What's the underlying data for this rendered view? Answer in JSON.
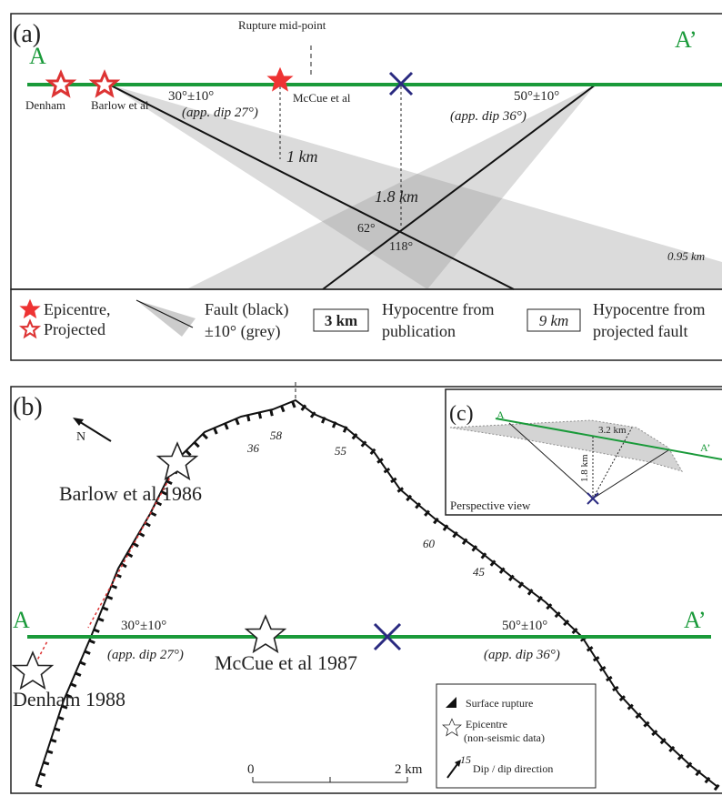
{
  "panel_a": {
    "label": "(a)",
    "start": "A",
    "end": "A’",
    "midpoint": "Rupture mid-point",
    "epicentres": [
      "Denham",
      "Barlow et al",
      "McCue et al"
    ],
    "fault_west": {
      "dip": "30°±10°",
      "apparent": "(app. dip 27°)"
    },
    "fault_east": {
      "dip": "50°±10°",
      "apparent": "(app. dip 36°)"
    },
    "depths": [
      "1 km",
      "1.8 km",
      "0.95 km"
    ],
    "angles": [
      "62°",
      "118°"
    ]
  },
  "legend_a": {
    "epicentre": "Epicentre,",
    "projected": "Projected",
    "fault": "Fault (black)",
    "range": "±10° (grey)",
    "pub_box": "3 km",
    "pub_1": "Hypocentre from",
    "pub_2": "publication",
    "proj_box": "9 km",
    "proj_1": "Hypocentre from",
    "proj_2": "projected fault"
  },
  "panel_b": {
    "label": "(b)",
    "north": "N",
    "start": "A",
    "end": "A’",
    "epicentres": [
      "Barlow et al 1986",
      "McCue et al 1987",
      "Denham 1988"
    ],
    "dips": [
      "36",
      "58",
      "55",
      "60",
      "45"
    ],
    "fault_west": {
      "dip": "30°±10°",
      "apparent": "(app. dip 27°)"
    },
    "fault_east": {
      "dip": "50°±10°",
      "apparent": "(app. dip 36°)"
    },
    "scale": [
      "0",
      "2 km"
    ]
  },
  "legend_b": {
    "rupture": "Surface rupture",
    "epicentre_1": "Epicentre",
    "epicentre_2": "(non-seismic data)",
    "dip_value": "15",
    "dip": "Dip / dip direction"
  },
  "panel_c": {
    "label": "(c)",
    "start": "A",
    "end": "A’",
    "dist": "3.2 km",
    "depth": "1.8 km",
    "caption": "Perspective view"
  }
}
